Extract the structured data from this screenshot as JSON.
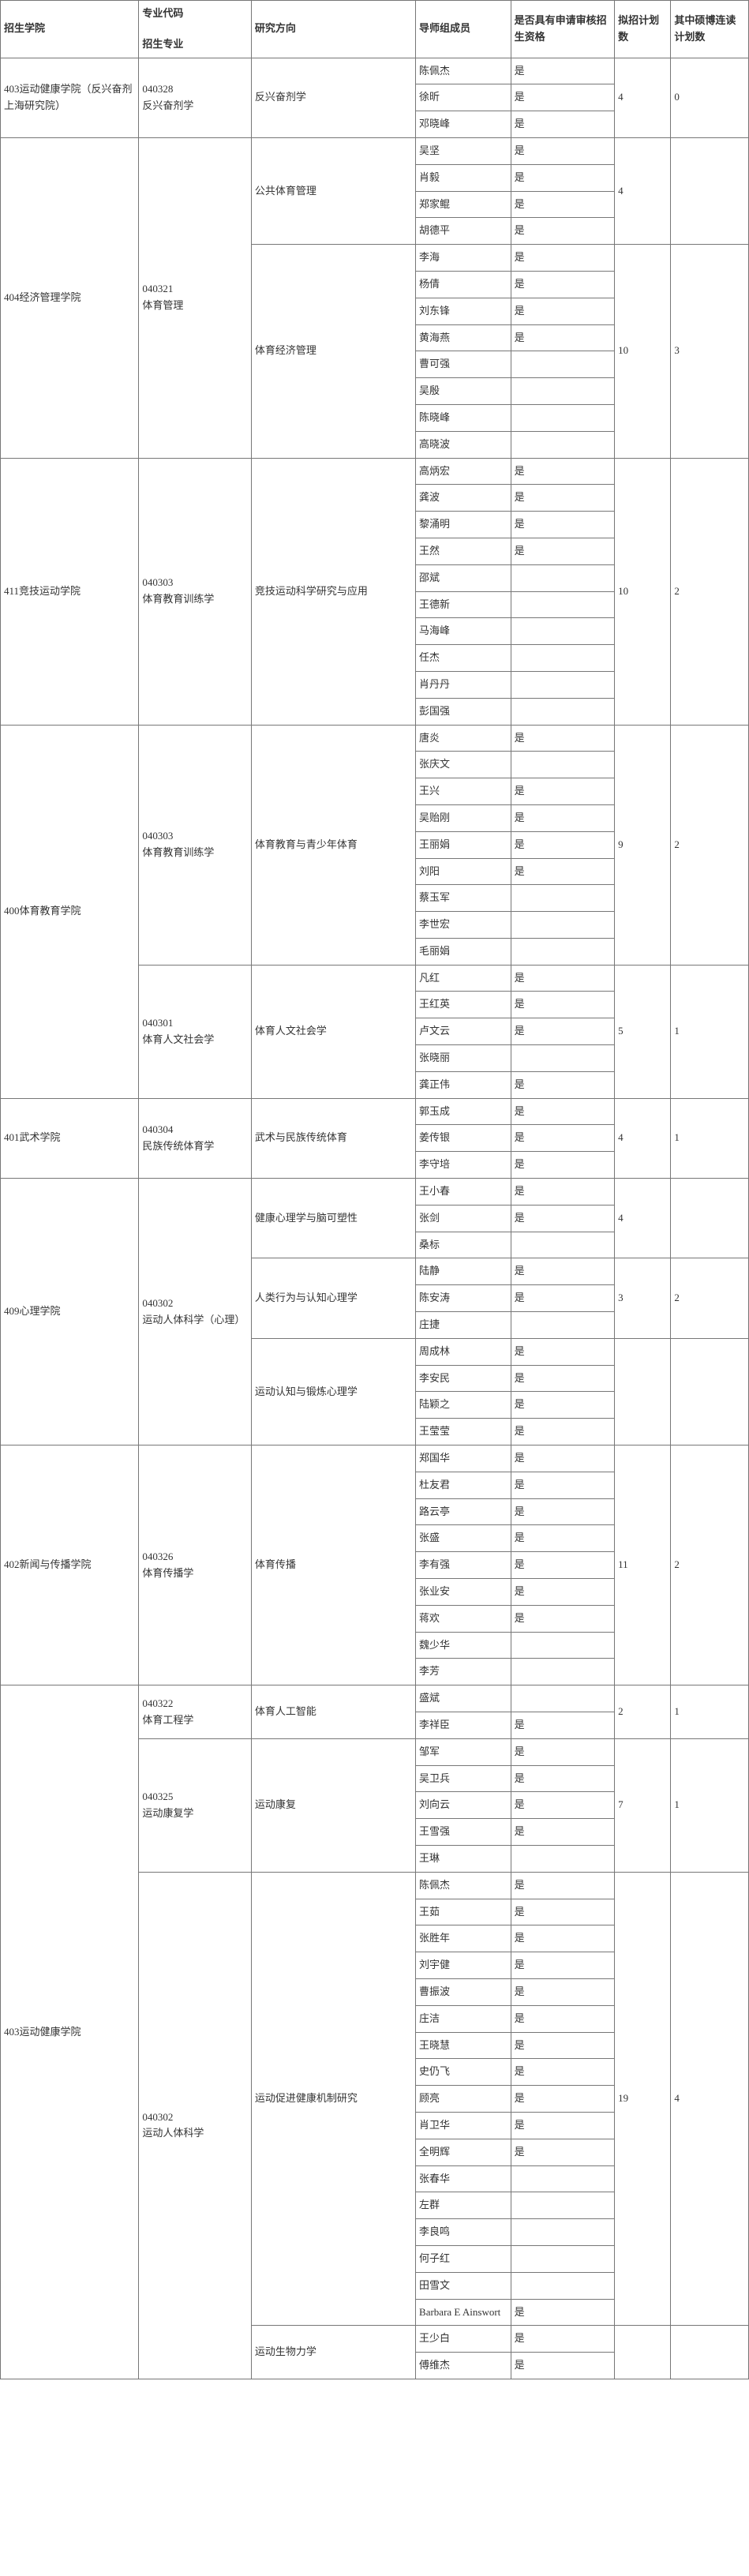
{
  "headers": {
    "college": "招生学院",
    "majorCode": "专业代码",
    "major": "招生专业",
    "direction": "研究方向",
    "supervisor": "导师组成员",
    "qualified": "是否具有申请审核招生资格",
    "plan": "拟招计划数",
    "masterPhd": "其中硕博连读计划数"
  },
  "groups": [
    {
      "college": "403运动健康学院（反兴奋剂上海研究院）",
      "majors": [
        {
          "code": "040328",
          "name": "反兴奋剂学",
          "directions": [
            {
              "dir": "反兴奋剂学",
              "plan": "4",
              "mp": "0",
              "sup": [
                [
                  "陈佩杰",
                  "是"
                ],
                [
                  "徐昕",
                  "是"
                ],
                [
                  "邓晓峰",
                  "是"
                ]
              ]
            }
          ]
        }
      ]
    },
    {
      "college": "404经济管理学院",
      "majors": [
        {
          "code": "040321",
          "name": "体育管理",
          "directions": [
            {
              "dir": "公共体育管理",
              "plan": "4",
              "mp": "",
              "sup": [
                [
                  "吴坚",
                  "是"
                ],
                [
                  "肖毅",
                  "是"
                ],
                [
                  "郑家鲲",
                  "是"
                ],
                [
                  "胡德平",
                  "是"
                ]
              ]
            },
            {
              "dir": "体育经济管理",
              "plan": "10",
              "mp": "3",
              "sup": [
                [
                  "李海",
                  "是"
                ],
                [
                  "杨倩",
                  "是"
                ],
                [
                  "刘东锋",
                  "是"
                ],
                [
                  "黄海燕",
                  "是"
                ],
                [
                  "曹可强",
                  ""
                ],
                [
                  "吴殷",
                  ""
                ],
                [
                  "陈晓峰",
                  ""
                ],
                [
                  "高晓波",
                  ""
                ]
              ]
            }
          ]
        }
      ]
    },
    {
      "college": "411竞技运动学院",
      "majors": [
        {
          "code": "040303",
          "name": "体育教育训练学",
          "directions": [
            {
              "dir": "竞技运动科学研究与应用",
              "plan": "10",
              "mp": "2",
              "sup": [
                [
                  "高炳宏",
                  "是"
                ],
                [
                  "龚波",
                  "是"
                ],
                [
                  "黎涌明",
                  "是"
                ],
                [
                  "王然",
                  "是"
                ],
                [
                  "邵斌",
                  ""
                ],
                [
                  "王德新",
                  ""
                ],
                [
                  "马海峰",
                  ""
                ],
                [
                  "任杰",
                  ""
                ],
                [
                  "肖丹丹",
                  ""
                ],
                [
                  "彭国强",
                  ""
                ]
              ]
            }
          ]
        }
      ]
    },
    {
      "college": "400体育教育学院",
      "majors": [
        {
          "code": "040303",
          "name": "体育教育训练学",
          "directions": [
            {
              "dir": "体育教育与青少年体育",
              "plan": "9",
              "mp": "2",
              "sup": [
                [
                  "唐炎",
                  "是"
                ],
                [
                  "张庆文",
                  ""
                ],
                [
                  "王兴",
                  "是"
                ],
                [
                  "吴贻刚",
                  "是"
                ],
                [
                  "王丽娟",
                  "是"
                ],
                [
                  "刘阳",
                  "是"
                ],
                [
                  "蔡玉军",
                  ""
                ],
                [
                  "李世宏",
                  ""
                ],
                [
                  "毛丽娟",
                  ""
                ]
              ]
            }
          ]
        },
        {
          "code": "040301",
          "name": "体育人文社会学",
          "directions": [
            {
              "dir": "体育人文社会学",
              "plan": "5",
              "mp": "1",
              "sup": [
                [
                  "凡红",
                  "是"
                ],
                [
                  "王红英",
                  "是"
                ],
                [
                  "卢文云",
                  "是"
                ],
                [
                  "张晓丽",
                  ""
                ],
                [
                  "龚正伟",
                  "是"
                ]
              ]
            }
          ]
        }
      ]
    },
    {
      "college": "401武术学院",
      "majors": [
        {
          "code": "040304",
          "name": "民族传统体育学",
          "directions": [
            {
              "dir": "武术与民族传统体育",
              "plan": "4",
              "mp": "1",
              "sup": [
                [
                  "郭玉成",
                  "是"
                ],
                [
                  "姜传银",
                  "是"
                ],
                [
                  "李守培",
                  "是"
                ]
              ]
            }
          ]
        }
      ]
    },
    {
      "college": "409心理学院",
      "majors": [
        {
          "code": "040302",
          "name": "运动人体科学（心理）",
          "directions": [
            {
              "dir": "健康心理学与脑可塑性",
              "plan": "4",
              "mp": "",
              "sup": [
                [
                  "王小春",
                  "是"
                ],
                [
                  "张剑",
                  "是"
                ],
                [
                  "桑标",
                  ""
                ]
              ]
            },
            {
              "dir": "人类行为与认知心理学",
              "plan": "3",
              "mp": "2",
              "sup": [
                [
                  "陆静",
                  "是"
                ],
                [
                  "陈安涛",
                  "是"
                ],
                [
                  "庄捷",
                  ""
                ]
              ]
            },
            {
              "dir": "运动认知与锻炼心理学",
              "plan": "",
              "mp": "",
              "sup": [
                [
                  "周成林",
                  "是"
                ],
                [
                  "李安民",
                  "是"
                ],
                [
                  "陆颖之",
                  "是"
                ],
                [
                  "王莹莹",
                  "是"
                ]
              ]
            }
          ]
        }
      ]
    },
    {
      "college": "402新闻与传播学院",
      "majors": [
        {
          "code": "040326",
          "name": "体育传播学",
          "directions": [
            {
              "dir": "体育传播",
              "plan": "11",
              "mp": "2",
              "sup": [
                [
                  "郑国华",
                  "是"
                ],
                [
                  "杜友君",
                  "是"
                ],
                [
                  "路云亭",
                  "是"
                ],
                [
                  "张盛",
                  "是"
                ],
                [
                  "李有强",
                  "是"
                ],
                [
                  "张业安",
                  "是"
                ],
                [
                  "蒋欢",
                  "是"
                ],
                [
                  "魏少华",
                  ""
                ],
                [
                  "李芳",
                  ""
                ]
              ]
            }
          ]
        }
      ]
    },
    {
      "college": "403运动健康学院",
      "majors": [
        {
          "code": "040322",
          "name": "体育工程学",
          "directions": [
            {
              "dir": "体育人工智能",
              "plan": "2",
              "mp": "1",
              "sup": [
                [
                  "盛斌",
                  ""
                ],
                [
                  "李祥臣",
                  "是"
                ]
              ]
            }
          ]
        },
        {
          "code": "040325",
          "name": "运动康复学",
          "directions": [
            {
              "dir": "运动康复",
              "plan": "7",
              "mp": "1",
              "sup": [
                [
                  "邹军",
                  "是"
                ],
                [
                  "吴卫兵",
                  "是"
                ],
                [
                  "刘向云",
                  "是"
                ],
                [
                  "王雪强",
                  "是"
                ],
                [
                  "王琳",
                  ""
                ]
              ]
            }
          ]
        },
        {
          "code": "040302",
          "name": "运动人体科学",
          "directions": [
            {
              "dir": "运动促进健康机制研究",
              "plan": "19",
              "mp": "4",
              "sup": [
                [
                  "陈佩杰",
                  "是"
                ],
                [
                  "王茹",
                  "是"
                ],
                [
                  "张胜年",
                  "是"
                ],
                [
                  "刘宇健",
                  "是"
                ],
                [
                  "曹振波",
                  "是"
                ],
                [
                  "庄洁",
                  "是"
                ],
                [
                  "王晓慧",
                  "是"
                ],
                [
                  "史仍飞",
                  "是"
                ],
                [
                  "顾亮",
                  "是"
                ],
                [
                  "肖卫华",
                  "是"
                ],
                [
                  "全明辉",
                  "是"
                ],
                [
                  "张春华",
                  ""
                ],
                [
                  "左群",
                  ""
                ],
                [
                  "李良鸣",
                  ""
                ],
                [
                  "何子红",
                  ""
                ],
                [
                  "田雪文",
                  ""
                ],
                [
                  "Barbara E Ainswort",
                  "是"
                ]
              ]
            },
            {
              "dir": "运动生物力学",
              "plan": "",
              "mp": "",
              "sup": [
                [
                  "王少白",
                  "是"
                ],
                [
                  "傅维杰",
                  "是"
                ]
              ]
            }
          ]
        }
      ]
    }
  ]
}
